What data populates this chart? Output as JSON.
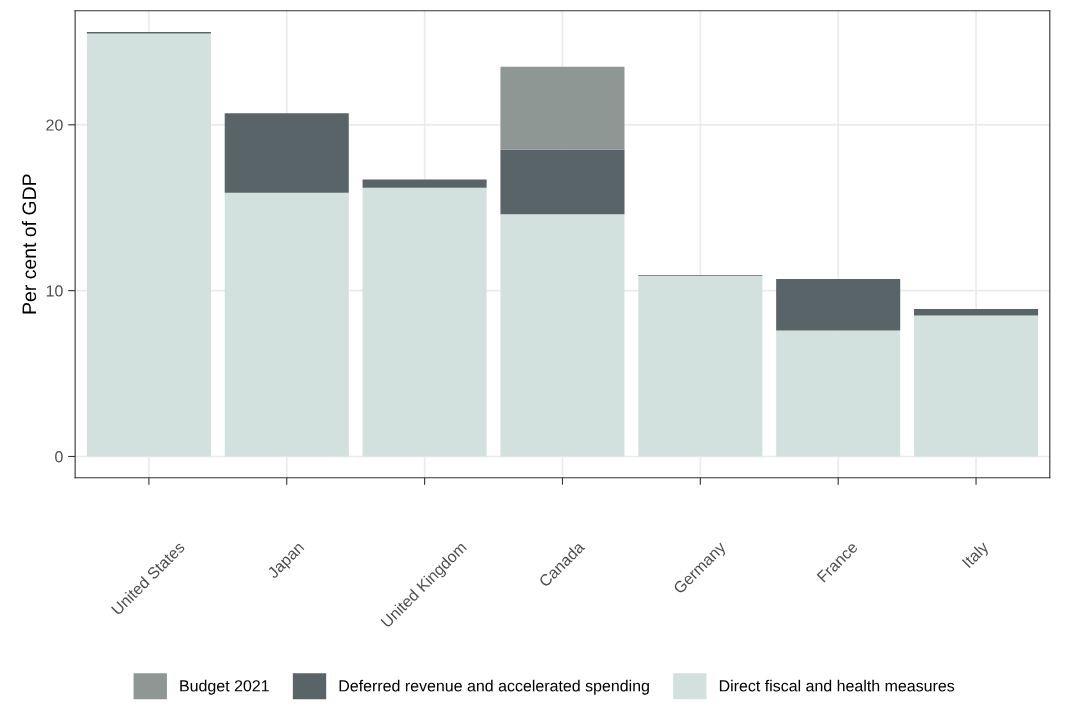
{
  "chart_data": {
    "type": "bar",
    "stacked": true,
    "ylabel": "Per cent of GDP",
    "categories": [
      "United States",
      "Japan",
      "United Kingdom",
      "Canada",
      "Germany",
      "France",
      "Italy"
    ],
    "series": [
      {
        "name": "Direct fiscal and health measures",
        "color": "#d3e1de",
        "values": [
          25.5,
          15.9,
          16.2,
          14.6,
          10.9,
          7.6,
          8.5
        ]
      },
      {
        "name": "Deferred revenue and accelerated spending",
        "color": "#596469",
        "values": [
          0.1,
          4.8,
          0.5,
          3.9,
          0.05,
          3.1,
          0.4
        ]
      },
      {
        "name": "Budget 2021",
        "color": "#8f9794",
        "values": [
          0,
          0,
          0,
          5.0,
          0,
          0,
          0
        ]
      }
    ],
    "ylim": [
      -1.28,
      26.88
    ],
    "yticks": [
      0,
      10,
      20
    ],
    "grid": true,
    "legend": "bottom"
  }
}
